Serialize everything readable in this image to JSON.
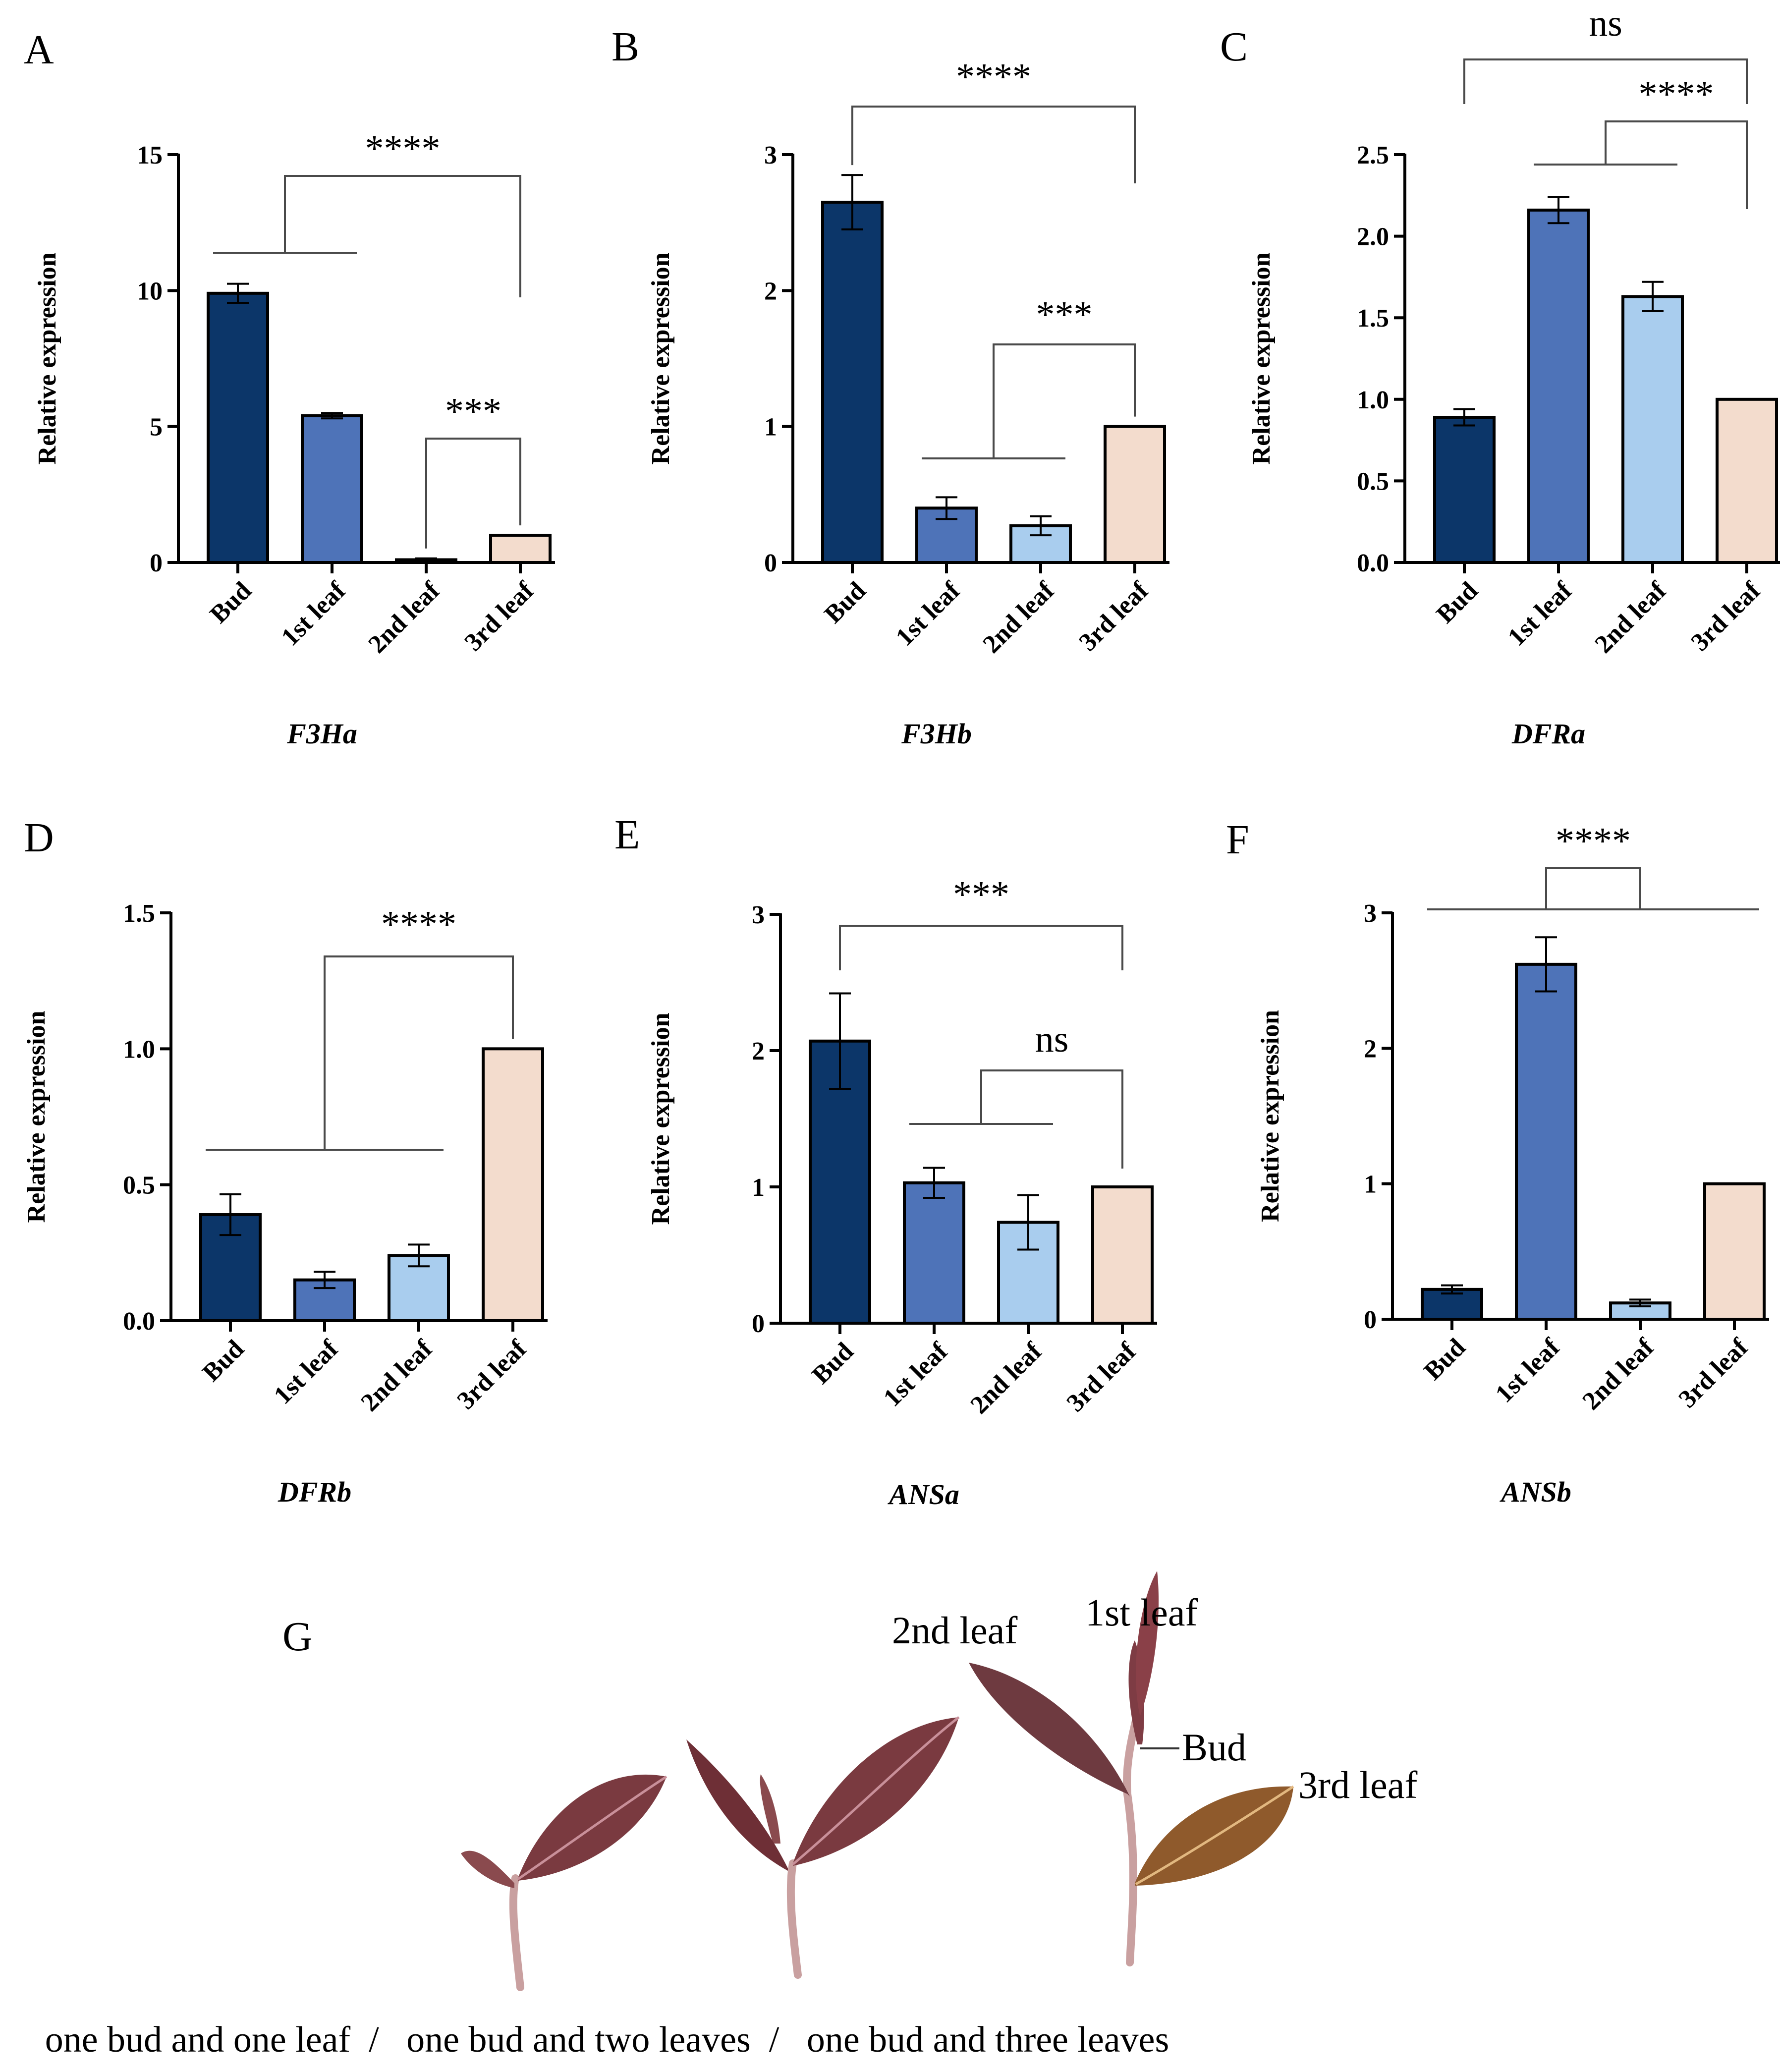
{
  "chart_data": [
    {
      "panel": "A",
      "type": "bar",
      "title": "F3Ha",
      "ylabel": "Relative expression",
      "ylim": [
        0,
        15
      ],
      "yticks": [
        0,
        5,
        10,
        15
      ],
      "categories": [
        "Bud",
        "1st leaf",
        "2nd leaf",
        "3rd leaf"
      ],
      "values": [
        9.9,
        5.4,
        0.1,
        1.0
      ],
      "errors": [
        0.35,
        0.1,
        0.05,
        0
      ],
      "significance": [
        {
          "label": "****",
          "group_a": [
            0,
            1
          ],
          "group_b": [
            3
          ]
        },
        {
          "label": "***",
          "group_a": [
            2
          ],
          "group_b": [
            3
          ]
        }
      ]
    },
    {
      "panel": "B",
      "type": "bar",
      "title": "F3Hb",
      "ylabel": "Relative expression",
      "ylim": [
        0,
        3
      ],
      "yticks": [
        0,
        1,
        2,
        3
      ],
      "categories": [
        "Bud",
        "1st leaf",
        "2nd leaf",
        "3rd leaf"
      ],
      "values": [
        2.65,
        0.4,
        0.27,
        1.0
      ],
      "errors": [
        0.2,
        0.08,
        0.07,
        0
      ],
      "significance": [
        {
          "label": "****",
          "group_a": [
            0
          ],
          "group_b": [
            3
          ]
        },
        {
          "label": "***",
          "group_a": [
            1,
            2
          ],
          "group_b": [
            3
          ]
        }
      ]
    },
    {
      "panel": "C",
      "type": "bar",
      "title": "DFRa",
      "ylabel": "Relative expression",
      "ylim": [
        0,
        2.5
      ],
      "yticks": [
        0.0,
        0.5,
        1.0,
        1.5,
        2.0,
        2.5
      ],
      "yticklabels": [
        "0.0",
        "0.5",
        "1.0",
        "1.5",
        "2.0",
        "2.5"
      ],
      "categories": [
        "Bud",
        "1st leaf",
        "2nd leaf",
        "3rd leaf"
      ],
      "values": [
        0.89,
        2.16,
        1.63,
        1.0
      ],
      "errors": [
        0.05,
        0.08,
        0.09,
        0
      ],
      "significance": [
        {
          "label": "ns",
          "group_a": [
            0
          ],
          "group_b": [
            3
          ]
        },
        {
          "label": "****",
          "group_a": [
            1,
            2
          ],
          "group_b": [
            3
          ]
        }
      ]
    },
    {
      "panel": "D",
      "type": "bar",
      "title": "DFRb",
      "ylabel": "Relative expression",
      "ylim": [
        0,
        1.5
      ],
      "yticks": [
        0.0,
        0.5,
        1.0,
        1.5
      ],
      "yticklabels": [
        "0.0",
        "0.5",
        "1.0",
        "1.5"
      ],
      "categories": [
        "Bud",
        "1st leaf",
        "2nd leaf",
        "3rd leaf"
      ],
      "values": [
        0.39,
        0.15,
        0.24,
        1.0
      ],
      "errors": [
        0.075,
        0.03,
        0.04,
        0
      ],
      "significance": [
        {
          "label": "****",
          "group_a": [
            0,
            1,
            2
          ],
          "group_b": [
            3
          ]
        }
      ]
    },
    {
      "panel": "E",
      "type": "bar",
      "title": "ANSa",
      "ylabel": "Relative expression",
      "ylim": [
        0,
        3
      ],
      "yticks": [
        0,
        1,
        2,
        3
      ],
      "categories": [
        "Bud",
        "1st leaf",
        "2nd leaf",
        "3rd leaf"
      ],
      "values": [
        2.07,
        1.03,
        0.74,
        1.0
      ],
      "errors": [
        0.35,
        0.11,
        0.2,
        0
      ],
      "significance": [
        {
          "label": "***",
          "group_a": [
            0
          ],
          "group_b": [
            3
          ]
        },
        {
          "label": "ns",
          "group_a": [
            1,
            2
          ],
          "group_b": [
            3
          ]
        }
      ]
    },
    {
      "panel": "F",
      "type": "bar",
      "title": "ANSb",
      "ylabel": "Relative expression",
      "ylim": [
        0,
        3
      ],
      "yticks": [
        0,
        1,
        2,
        3
      ],
      "categories": [
        "Bud",
        "1st leaf",
        "2nd leaf",
        "3rd leaf"
      ],
      "values": [
        0.22,
        2.62,
        0.12,
        1.0
      ],
      "errors": [
        0.03,
        0.2,
        0.025,
        0
      ],
      "significance": [
        {
          "label": "****",
          "group_a": [
            0,
            2
          ],
          "group_b": [
            1,
            3
          ]
        }
      ]
    }
  ],
  "colors": {
    "bud": "#0c3669",
    "leaf1": "#4e73b8",
    "leaf2": "#a9cdee",
    "leaf3": "#f3dccd",
    "axis": "#000000",
    "bracket": "#4a4a4a"
  },
  "panel_g": {
    "letter": "G",
    "labels": {
      "leaf2": "2nd leaf",
      "leaf1": "1st leaf",
      "bud": "Bud",
      "leaf3": "3rd leaf"
    },
    "caption": "one bud and one leaf  /   one bud and two leaves  /   one bud and three leaves"
  }
}
